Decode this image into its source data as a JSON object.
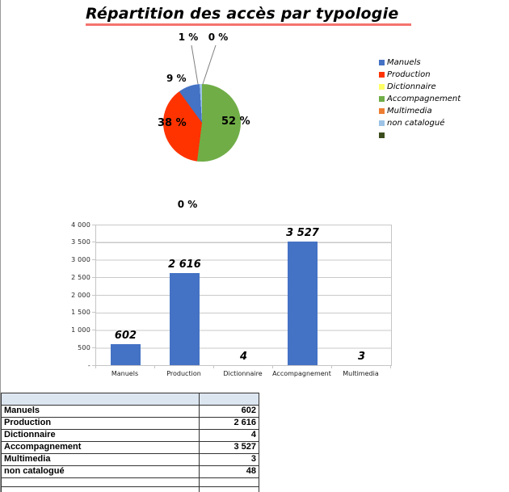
{
  "title": "Répartition des accès par typologie",
  "pie": {
    "start_deg": 356.4,
    "slices": [
      {
        "name": "non catalogué",
        "pct": 1,
        "color": "#9dc3e6"
      },
      {
        "name": "Accompagnement",
        "pct": 52,
        "color": "#70ad47"
      },
      {
        "name": "Production",
        "pct": 38,
        "color": "#ff3300"
      },
      {
        "name": "Manuels",
        "pct": 9,
        "color": "#4472c4"
      }
    ],
    "callouts": [
      "1 %",
      "0 %"
    ],
    "labels": {
      "manuels": "9 %",
      "production": "38 %",
      "accompagnement": "52 %"
    }
  },
  "legend": {
    "items": [
      {
        "label": "Manuels",
        "color": "#4472c4"
      },
      {
        "label": "Production",
        "color": "#ff3300"
      },
      {
        "label": "Dictionnaire",
        "color": "#ffff66"
      },
      {
        "label": "Accompagnement",
        "color": "#70ad47"
      },
      {
        "label": "Multimedia",
        "color": "#ed7d31"
      },
      {
        "label": "non catalogué",
        "color": "#9dc3e6"
      },
      {
        "label": "",
        "color": "#3c4d1d"
      }
    ]
  },
  "bar": {
    "floating_label": "0 %",
    "categories": [
      "Manuels",
      "Production",
      "Dictionnaire",
      "Accompagnement",
      "Multimedia"
    ],
    "values": [
      602,
      2616,
      4,
      3527,
      3
    ],
    "value_labels": [
      "602",
      "2 616",
      "4",
      "3 527",
      "3"
    ],
    "y_ticks": [
      "4 000",
      "3 500",
      "3 000",
      "2 500",
      "2 000",
      "1 500",
      "1 000",
      "500",
      "-"
    ],
    "y_max": 4000,
    "bar_color": "#4472c4"
  },
  "table": {
    "rows": [
      {
        "label": "Manuels",
        "value": "602"
      },
      {
        "label": "Production",
        "value": "2 616"
      },
      {
        "label": "Dictionnaire",
        "value": "4"
      },
      {
        "label": "Accompagnement",
        "value": "3 527"
      },
      {
        "label": "Multimedia",
        "value": "3"
      },
      {
        "label": "non catalogué",
        "value": "48"
      }
    ]
  },
  "chart_data": [
    {
      "type": "pie",
      "title": "Répartition des accès par typologie",
      "categories": [
        "Manuels",
        "Production",
        "Dictionnaire",
        "Accompagnement",
        "Multimedia",
        "non catalogué"
      ],
      "values_percent": [
        9,
        38,
        0,
        52,
        0,
        1
      ],
      "values_absolute": [
        602,
        2616,
        4,
        3527,
        3,
        48
      ],
      "colors": [
        "#4472c4",
        "#ff3300",
        "#ffff66",
        "#70ad47",
        "#ed7d31",
        "#9dc3e6"
      ],
      "data_labels": [
        "9 %",
        "38 %",
        "0 %",
        "52 %",
        "0 %",
        "1 %"
      ],
      "legend_position": "right"
    },
    {
      "type": "bar",
      "categories": [
        "Manuels",
        "Production",
        "Dictionnaire",
        "Accompagnement",
        "Multimedia"
      ],
      "values": [
        602,
        2616,
        4,
        3527,
        3
      ],
      "data_labels": [
        "602",
        "2 616",
        "4",
        "3 527",
        "3"
      ],
      "annotation": "0 %",
      "xlabel": "",
      "ylabel": "",
      "ylim": [
        0,
        4000
      ],
      "ytick_interval": 500,
      "ytick_labels": [
        "4 000",
        "3 500",
        "3 000",
        "2 500",
        "2 000",
        "1 500",
        "1 000",
        "500",
        "-"
      ],
      "grid": true,
      "bar_color": "#4472c4"
    },
    {
      "type": "table",
      "rows": [
        [
          "Manuels",
          602
        ],
        [
          "Production",
          2616
        ],
        [
          "Dictionnaire",
          4
        ],
        [
          "Accompagnement",
          3527
        ],
        [
          "Multimedia",
          3
        ],
        [
          "non catalogué",
          48
        ]
      ]
    }
  ]
}
